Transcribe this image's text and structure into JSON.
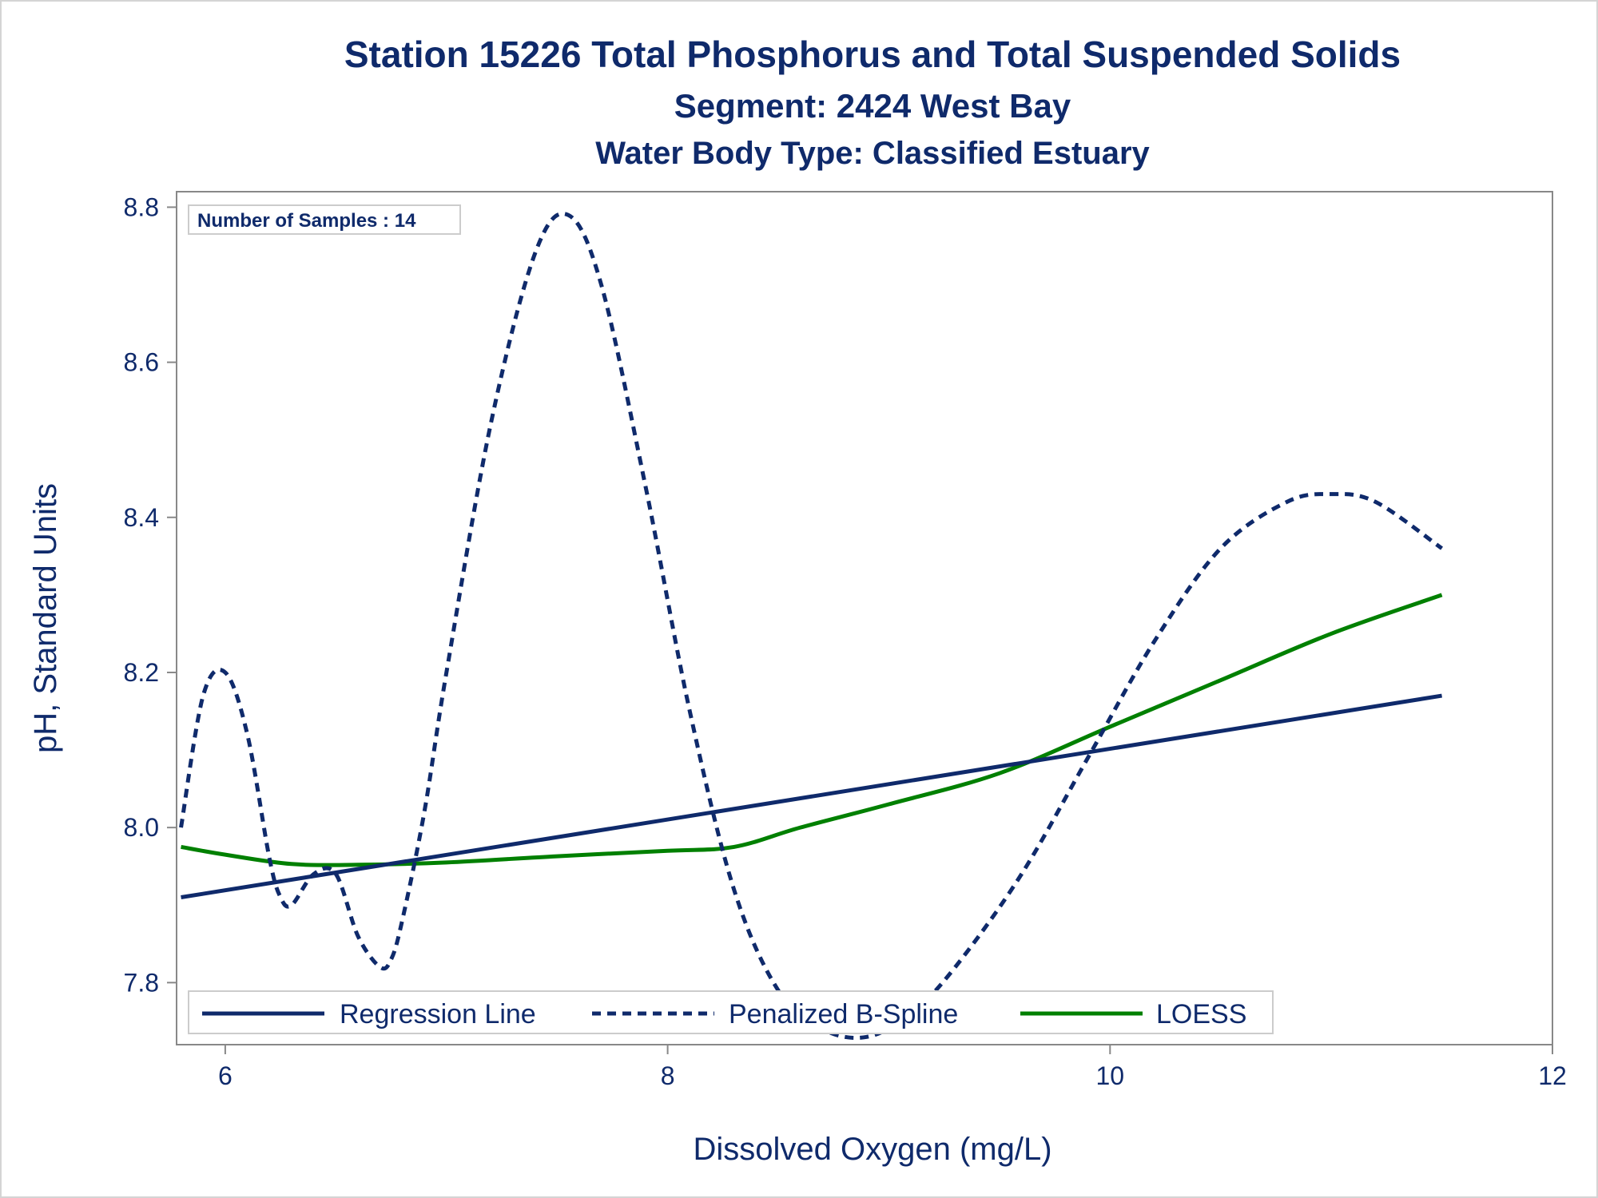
{
  "titles": {
    "line1": "Station 15226  Total Phosphorus and Total Suspended Solids",
    "line2": "Segment: 2424  West Bay",
    "line3": "Water Body Type: Classified Estuary"
  },
  "inset_label": "Number of Samples : 14",
  "colors": {
    "text": "#0f2a6b",
    "regression": "#0f2a6b",
    "spline": "#0f2a6b",
    "loess": "#008000",
    "axis": "#888888"
  },
  "chart_data": {
    "type": "line",
    "xlabel": "Dissolved Oxygen (mg/L)",
    "ylabel": "pH, Standard Units",
    "xlim": [
      5.78,
      12.0
    ],
    "ylim": [
      7.72,
      8.82
    ],
    "x_ticks": [
      "6",
      "8",
      "10",
      "12"
    ],
    "x_tick_values": [
      6,
      8,
      10,
      12
    ],
    "y_ticks": [
      "7.8",
      "8.0",
      "8.2",
      "8.4",
      "8.6",
      "8.8"
    ],
    "y_tick_values": [
      7.8,
      8.0,
      8.2,
      8.4,
      8.6,
      8.8
    ],
    "legend_position": "bottom-left inside",
    "series": [
      {
        "name": "Regression Line",
        "style": "solid",
        "x": [
          5.8,
          11.5
        ],
        "y": [
          7.91,
          8.17
        ]
      },
      {
        "name": "Penalized B-Spline",
        "style": "dashed",
        "x": [
          5.8,
          5.9,
          6.0,
          6.1,
          6.2,
          6.25,
          6.3,
          6.4,
          6.5,
          6.6,
          6.7,
          6.75,
          6.8,
          6.9,
          7.0,
          7.2,
          7.4,
          7.55,
          7.7,
          7.9,
          8.1,
          8.3,
          8.5,
          8.7,
          8.9,
          9.1,
          9.3,
          9.6,
          9.9,
          10.2,
          10.5,
          10.8,
          11.0,
          11.2,
          11.5
        ],
        "y": [
          8.0,
          8.17,
          8.2,
          8.12,
          7.96,
          7.91,
          7.9,
          7.94,
          7.94,
          7.86,
          7.82,
          7.83,
          7.88,
          8.02,
          8.2,
          8.52,
          8.74,
          8.79,
          8.7,
          8.44,
          8.15,
          7.92,
          7.79,
          7.74,
          7.73,
          7.76,
          7.82,
          7.94,
          8.09,
          8.24,
          8.36,
          8.42,
          8.43,
          8.42,
          8.36
        ]
      },
      {
        "name": "LOESS",
        "style": "solid",
        "x": [
          5.8,
          6.0,
          6.3,
          6.6,
          7.0,
          7.5,
          8.0,
          8.3,
          8.6,
          9.0,
          9.5,
          10.0,
          10.5,
          11.0,
          11.5
        ],
        "y": [
          7.975,
          7.965,
          7.953,
          7.952,
          7.955,
          7.963,
          7.97,
          7.975,
          8.0,
          8.03,
          8.07,
          8.13,
          8.19,
          8.25,
          8.3
        ]
      }
    ]
  }
}
